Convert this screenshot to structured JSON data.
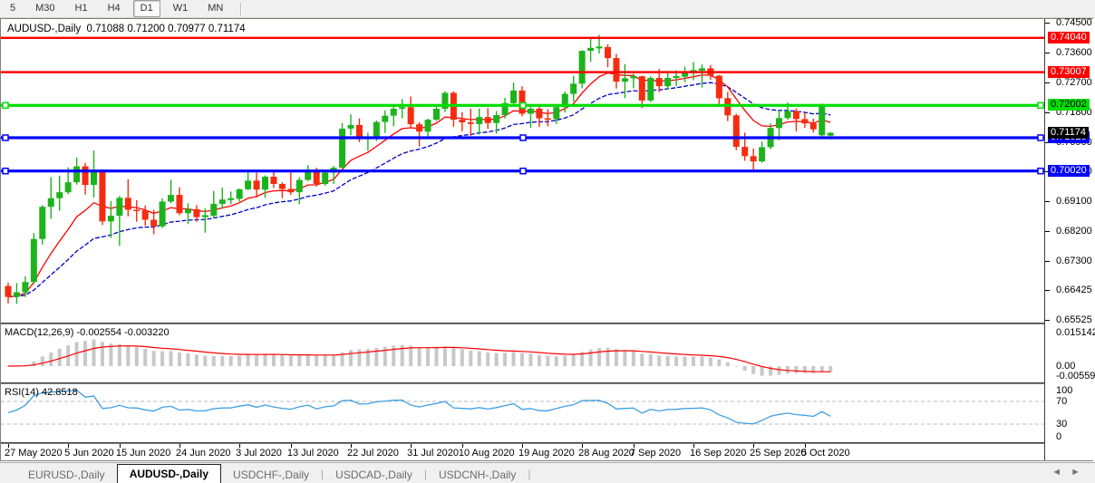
{
  "toolbar": {
    "timeframes": [
      "5",
      "M30",
      "H1",
      "H4",
      "D1",
      "W1",
      "MN"
    ],
    "active_timeframe": "D1"
  },
  "chart": {
    "symbol_label": "AUDUSD-,Daily",
    "open": "0.71088",
    "high": "0.71200",
    "low": "0.70977",
    "close": "0.71174"
  },
  "indicators": {
    "macd": {
      "label": "MACD(12,26,9)",
      "value_main": "-0.002554",
      "value_signal": "-0.003220",
      "axis_labels": [
        "0.015142",
        "0.00",
        "-0.005595"
      ],
      "axis_values": [
        0.015142,
        0.0,
        -0.005595
      ],
      "scale_max": 0.015142,
      "scale_min": -0.005595
    },
    "rsi": {
      "label": "RSI(14)",
      "value": "42.8518",
      "axis_labels": [
        "100",
        "70",
        "30",
        "0"
      ],
      "axis_values": [
        100,
        70,
        30,
        0
      ],
      "levels": [
        70,
        30
      ]
    }
  },
  "tabs": {
    "items": [
      "EURUSD-,Daily",
      "AUDUSD-,Daily",
      "USDCHF-,Daily",
      "USDCAD-,Daily",
      "USDCNH-,Daily"
    ],
    "active_index": 1,
    "scroll_left": "◄",
    "scroll_right": "►"
  },
  "colors": {
    "bull": "#1db31d",
    "bear": "#f52c10",
    "hline_red": "#ff0000",
    "hline_green": "#00dd00",
    "hline_blue": "#0000ff",
    "ma_fast": "#ff0000",
    "ma_slow": "#0000cc",
    "macd_hist": "#c8c8c8",
    "macd_signal": "#ff0000",
    "rsi_line": "#3e9fe6",
    "current_badge_bg": "#000000"
  },
  "chart_data": {
    "type": "candlestick",
    "symbol": "AUDUSD",
    "timeframe": "Daily",
    "price_ticks": [
      "0.74500",
      "0.73600",
      "0.72700",
      "0.71800",
      "0.70900",
      "0.70000",
      "0.69100",
      "0.68200",
      "0.67300",
      "0.66425",
      "0.65525"
    ],
    "price_range_top": 0.74637,
    "price_range_bottom": 0.6544,
    "current_price": 0.71174,
    "hlines": [
      {
        "price": 0.7404,
        "label": "0.74040",
        "color": "#ff0000",
        "text": "#ffffff",
        "thick": 2.4,
        "handles": false
      },
      {
        "price": 0.73007,
        "label": "0.73007",
        "color": "#ff0000",
        "text": "#ffffff",
        "thick": 2.4,
        "handles": false
      },
      {
        "price": 0.72002,
        "label": "0.72002",
        "color": "#00dd00",
        "text": "#000000",
        "thick": 3.2,
        "handles": true
      },
      {
        "price": 0.71025,
        "label": "0.71025",
        "color": "#0000ff",
        "text": "#ffffff",
        "thick": 3.2,
        "handles": true
      },
      {
        "price": 0.7002,
        "label": "0.70020",
        "color": "#0000ff",
        "text": "#ffffff",
        "thick": 3.2,
        "handles": true
      }
    ],
    "x_ticks": [
      {
        "label": "27 May 2020",
        "index": 0
      },
      {
        "label": "5 Jun 2020",
        "index": 7
      },
      {
        "label": "15 Jun 2020",
        "index": 13
      },
      {
        "label": "24 Jun 2020",
        "index": 20
      },
      {
        "label": "3 Jul 2020",
        "index": 27
      },
      {
        "label": "13 Jul 2020",
        "index": 33
      },
      {
        "label": "22 Jul 2020",
        "index": 40
      },
      {
        "label": "31 Jul 2020",
        "index": 47
      },
      {
        "label": "10 Aug 2020",
        "index": 53
      },
      {
        "label": "19 Aug 2020",
        "index": 60
      },
      {
        "label": "28 Aug 2020",
        "index": 67
      },
      {
        "label": "7 Sep 2020",
        "index": 73
      },
      {
        "label": "16 Sep 2020",
        "index": 80
      },
      {
        "label": "25 Sep 2020",
        "index": 87
      },
      {
        "label": "5 Oct 2020",
        "index": 93
      }
    ],
    "ma_periods": {
      "fast": 9,
      "slow": 21
    },
    "candles": [
      [
        0.6655,
        0.6665,
        0.6602,
        0.6622
      ],
      [
        0.6622,
        0.6664,
        0.6601,
        0.6636
      ],
      [
        0.6636,
        0.6684,
        0.6622,
        0.6667
      ],
      [
        0.6667,
        0.6815,
        0.666,
        0.6797
      ],
      [
        0.6797,
        0.6899,
        0.678,
        0.6894
      ],
      [
        0.6894,
        0.6983,
        0.6858,
        0.692
      ],
      [
        0.692,
        0.6988,
        0.6882,
        0.6938
      ],
      [
        0.6938,
        0.7013,
        0.6932,
        0.6968
      ],
      [
        0.6968,
        0.7043,
        0.6961,
        0.7016
      ],
      [
        0.7016,
        0.7027,
        0.6931,
        0.696
      ],
      [
        0.696,
        0.7064,
        0.6922,
        0.7
      ],
      [
        0.7,
        0.7007,
        0.6839,
        0.685
      ],
      [
        0.685,
        0.6911,
        0.68,
        0.6867
      ],
      [
        0.6867,
        0.6927,
        0.6776,
        0.6921
      ],
      [
        0.6921,
        0.6977,
        0.6865,
        0.6885
      ],
      [
        0.6885,
        0.6914,
        0.6849,
        0.6883
      ],
      [
        0.6883,
        0.6898,
        0.6837,
        0.6855
      ],
      [
        0.6855,
        0.6885,
        0.6811,
        0.6835
      ],
      [
        0.6835,
        0.692,
        0.683,
        0.691
      ],
      [
        0.691,
        0.6976,
        0.6905,
        0.693
      ],
      [
        0.693,
        0.6953,
        0.6869,
        0.6875
      ],
      [
        0.6875,
        0.6905,
        0.6842,
        0.6887
      ],
      [
        0.6887,
        0.6899,
        0.6849,
        0.6863
      ],
      [
        0.6863,
        0.6889,
        0.6816,
        0.6867
      ],
      [
        0.6867,
        0.6942,
        0.6861,
        0.6903
      ],
      [
        0.6903,
        0.6952,
        0.6888,
        0.6916
      ],
      [
        0.6916,
        0.694,
        0.6902,
        0.6918
      ],
      [
        0.6918,
        0.6949,
        0.691,
        0.6947
      ],
      [
        0.6947,
        0.6998,
        0.6944,
        0.6973
      ],
      [
        0.6973,
        0.6997,
        0.6922,
        0.6946
      ],
      [
        0.6946,
        0.6989,
        0.6921,
        0.6985
      ],
      [
        0.6985,
        0.7001,
        0.6951,
        0.6963
      ],
      [
        0.6963,
        0.6968,
        0.692,
        0.6948
      ],
      [
        0.6948,
        0.7,
        0.693,
        0.6938
      ],
      [
        0.6938,
        0.6983,
        0.6902,
        0.6975
      ],
      [
        0.6975,
        0.702,
        0.6972,
        0.7005
      ],
      [
        0.7005,
        0.7012,
        0.6955,
        0.6963
      ],
      [
        0.6963,
        0.7003,
        0.6958,
        0.6997
      ],
      [
        0.6997,
        0.7017,
        0.6963,
        0.7012
      ],
      [
        0.7012,
        0.7147,
        0.7011,
        0.713
      ],
      [
        0.713,
        0.7173,
        0.711,
        0.7141
      ],
      [
        0.7141,
        0.7161,
        0.7089,
        0.7098
      ],
      [
        0.7098,
        0.7118,
        0.7063,
        0.7103
      ],
      [
        0.7103,
        0.7155,
        0.7093,
        0.715
      ],
      [
        0.715,
        0.7185,
        0.7117,
        0.7169
      ],
      [
        0.7169,
        0.7198,
        0.7137,
        0.719
      ],
      [
        0.719,
        0.7219,
        0.7161,
        0.7195
      ],
      [
        0.7195,
        0.7227,
        0.713,
        0.7143
      ],
      [
        0.7143,
        0.7149,
        0.7076,
        0.7121
      ],
      [
        0.7121,
        0.716,
        0.7102,
        0.7157
      ],
      [
        0.7157,
        0.7199,
        0.7153,
        0.719
      ],
      [
        0.719,
        0.7243,
        0.718,
        0.7238
      ],
      [
        0.7238,
        0.7243,
        0.7136,
        0.7157
      ],
      [
        0.7157,
        0.718,
        0.7122,
        0.7149
      ],
      [
        0.7149,
        0.719,
        0.7108,
        0.7144
      ],
      [
        0.7144,
        0.7191,
        0.7112,
        0.7165
      ],
      [
        0.7165,
        0.7192,
        0.7129,
        0.7147
      ],
      [
        0.7147,
        0.7183,
        0.7115,
        0.7171
      ],
      [
        0.7171,
        0.7223,
        0.7161,
        0.7207
      ],
      [
        0.7207,
        0.7269,
        0.7199,
        0.7245
      ],
      [
        0.7245,
        0.7258,
        0.7167,
        0.7175
      ],
      [
        0.7175,
        0.7195,
        0.7133,
        0.719
      ],
      [
        0.719,
        0.7197,
        0.7135,
        0.7161
      ],
      [
        0.7161,
        0.7189,
        0.7137,
        0.7159
      ],
      [
        0.7159,
        0.7203,
        0.7144,
        0.7195
      ],
      [
        0.7195,
        0.7242,
        0.7179,
        0.7235
      ],
      [
        0.7235,
        0.729,
        0.7212,
        0.7266
      ],
      [
        0.7266,
        0.7366,
        0.7252,
        0.7365
      ],
      [
        0.7365,
        0.7405,
        0.7332,
        0.7374
      ],
      [
        0.7374,
        0.7413,
        0.7357,
        0.7376
      ],
      [
        0.7376,
        0.7385,
        0.7315,
        0.7343
      ],
      [
        0.7343,
        0.7356,
        0.7251,
        0.7272
      ],
      [
        0.7272,
        0.7325,
        0.7222,
        0.7282
      ],
      [
        0.7282,
        0.7296,
        0.7252,
        0.7288
      ],
      [
        0.7288,
        0.729,
        0.7192,
        0.7215
      ],
      [
        0.7215,
        0.7288,
        0.721,
        0.7283
      ],
      [
        0.7283,
        0.731,
        0.724,
        0.7258
      ],
      [
        0.7258,
        0.7297,
        0.7248,
        0.7283
      ],
      [
        0.7283,
        0.7306,
        0.7258,
        0.7287
      ],
      [
        0.7287,
        0.7317,
        0.727,
        0.7301
      ],
      [
        0.7301,
        0.7331,
        0.7276,
        0.7305
      ],
      [
        0.7305,
        0.7324,
        0.7254,
        0.7312
      ],
      [
        0.7312,
        0.7322,
        0.7277,
        0.729
      ],
      [
        0.729,
        0.7292,
        0.72,
        0.7222
      ],
      [
        0.7222,
        0.7241,
        0.7153,
        0.717
      ],
      [
        0.717,
        0.7175,
        0.7065,
        0.7075
      ],
      [
        0.7075,
        0.7118,
        0.7033,
        0.7047
      ],
      [
        0.7047,
        0.707,
        0.7006,
        0.7031
      ],
      [
        0.7031,
        0.7091,
        0.7027,
        0.7074
      ],
      [
        0.7074,
        0.7146,
        0.7068,
        0.7132
      ],
      [
        0.7132,
        0.7185,
        0.7095,
        0.7162
      ],
      [
        0.7162,
        0.7209,
        0.7157,
        0.7183
      ],
      [
        0.7183,
        0.7191,
        0.7122,
        0.7159
      ],
      [
        0.7159,
        0.7178,
        0.7132,
        0.7146
      ],
      [
        0.7146,
        0.716,
        0.7118,
        0.7128
      ],
      [
        0.711,
        0.7206,
        0.71,
        0.7198
      ],
      [
        0.71088,
        0.712,
        0.70977,
        0.71174
      ]
    ]
  }
}
